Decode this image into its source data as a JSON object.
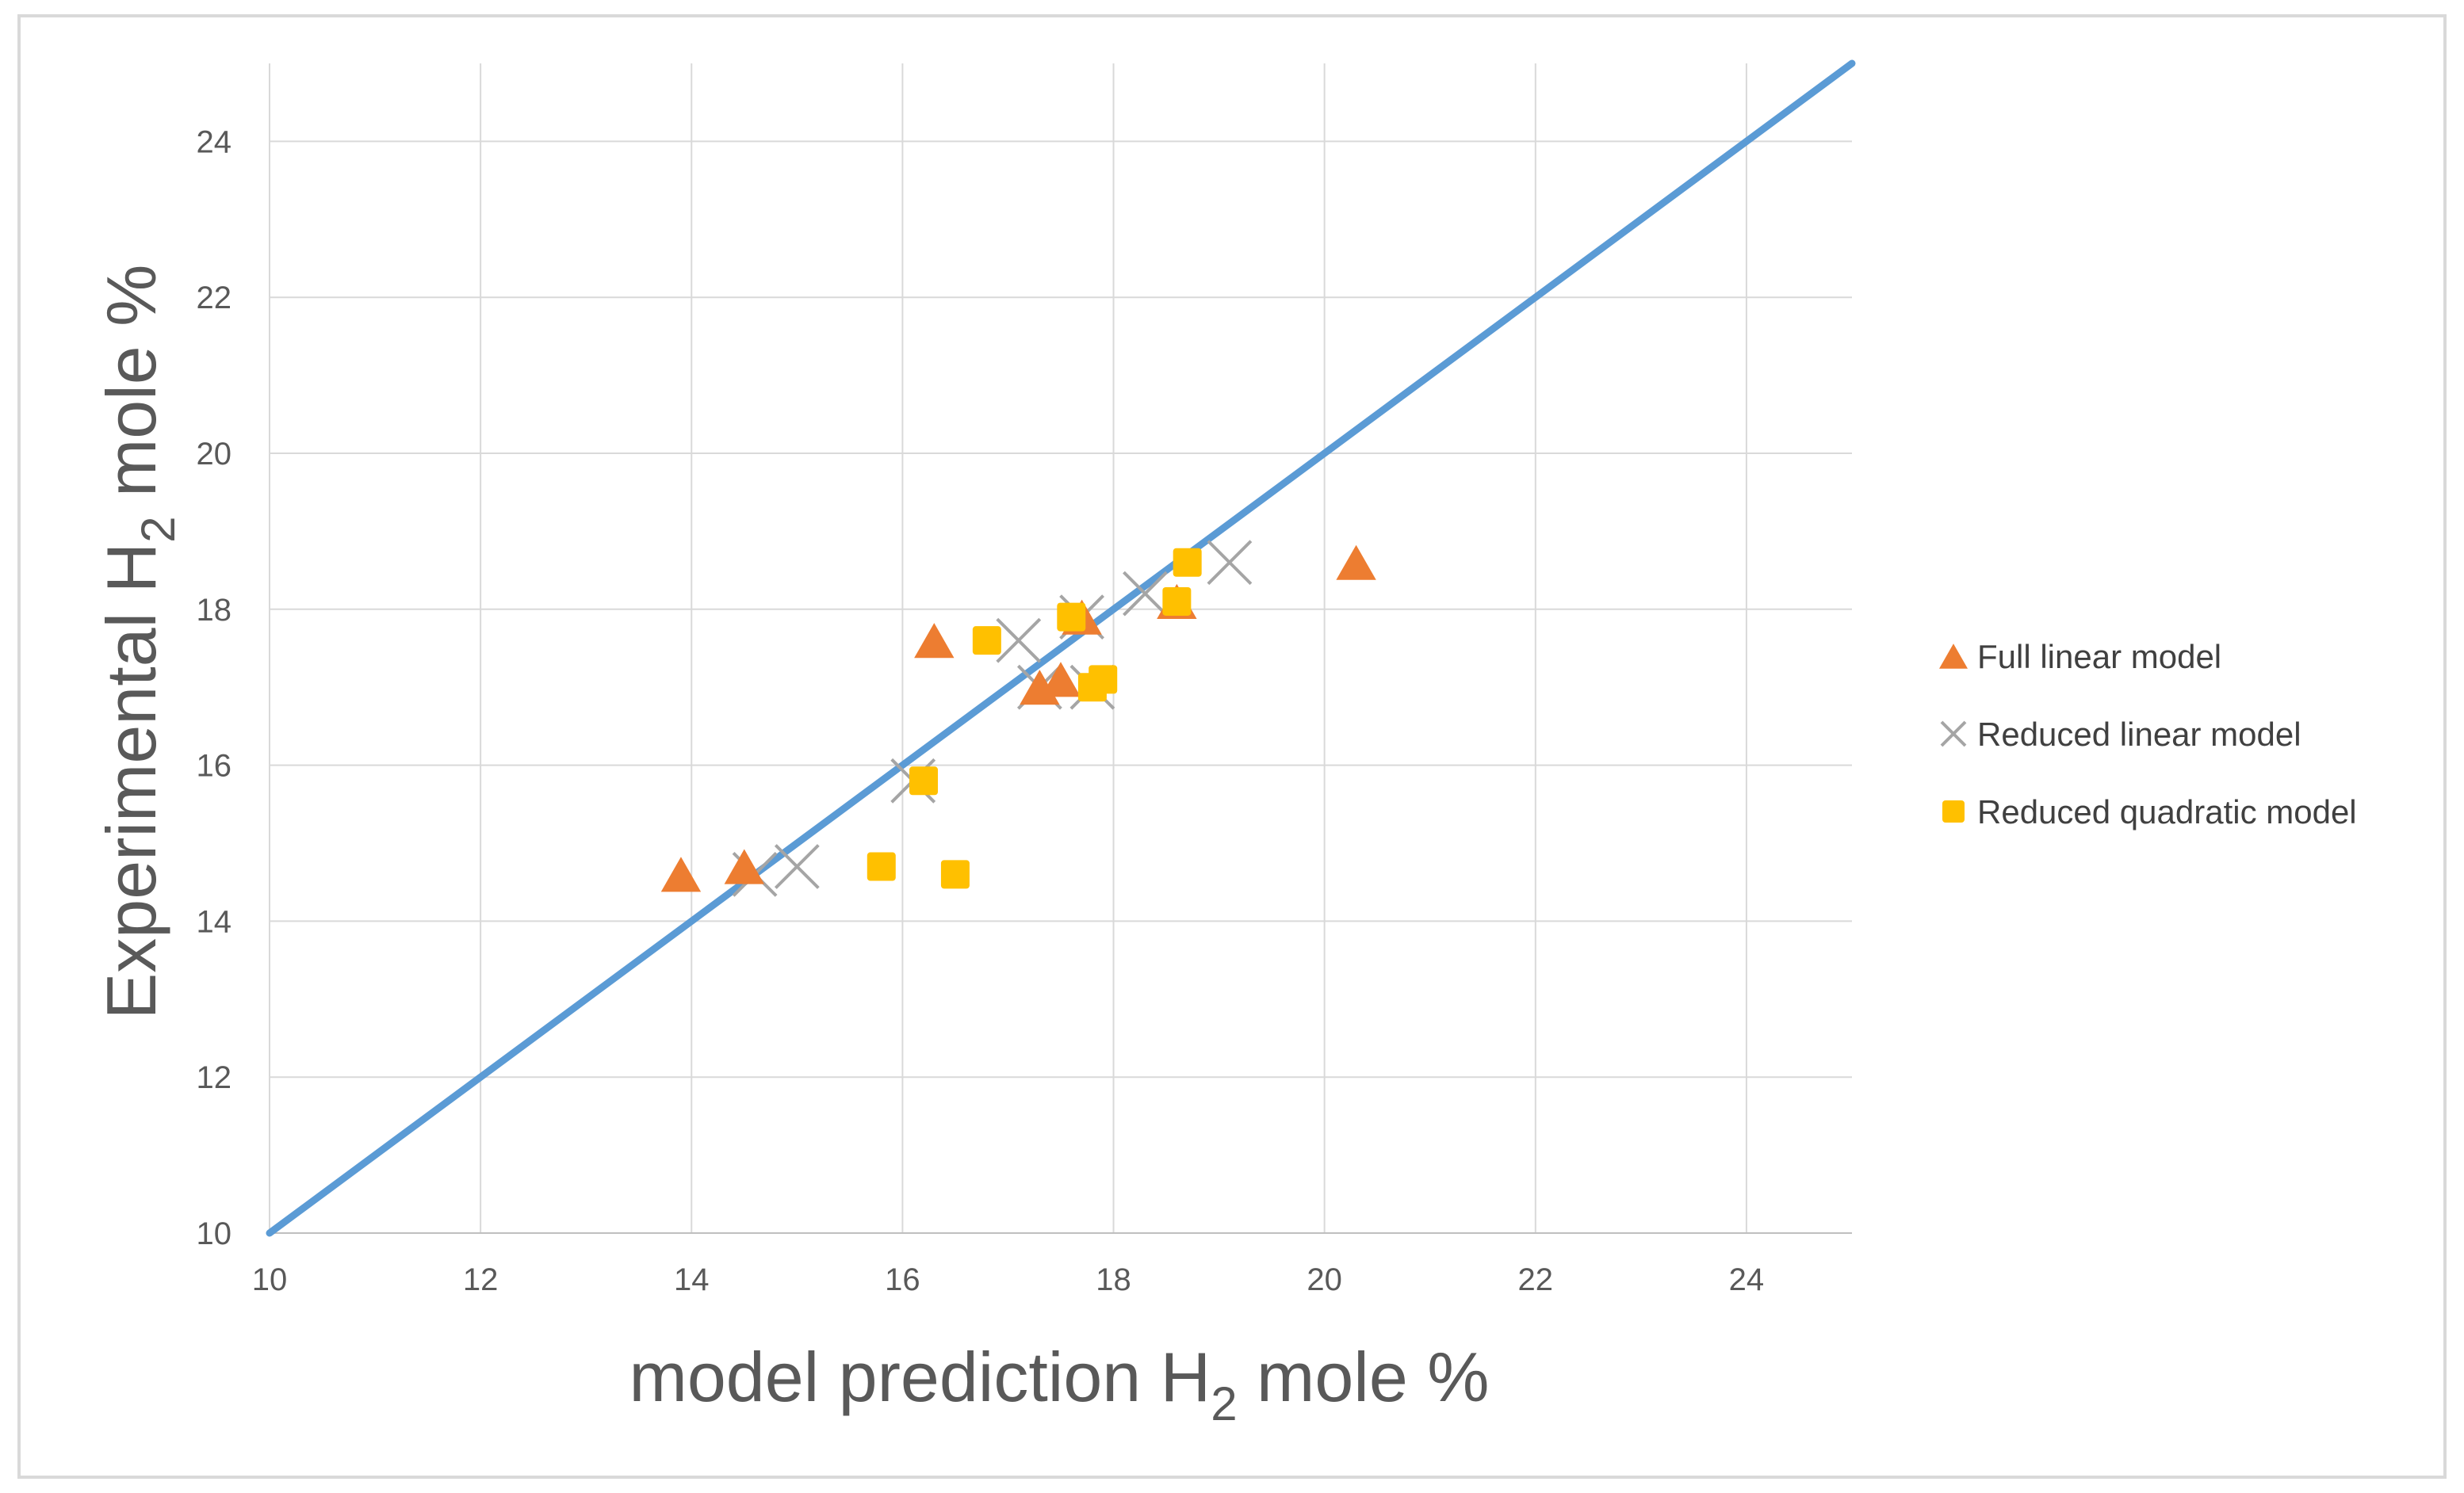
{
  "chart_data": {
    "type": "scatter",
    "title": "",
    "xlabel": {
      "prefix": "model prediction H",
      "sub": "2",
      "suffix": " mole %"
    },
    "ylabel": {
      "prefix": "Experimental H",
      "sub": "2",
      "suffix": " mole %"
    },
    "xlim": [
      10,
      25
    ],
    "ylim": [
      10,
      25
    ],
    "x_ticks": [
      10,
      12,
      14,
      16,
      18,
      20,
      22,
      24
    ],
    "y_ticks": [
      10,
      12,
      14,
      16,
      18,
      20,
      22,
      24
    ],
    "grid": true,
    "legend_position": "right",
    "reference_line": {
      "points": [
        [
          10,
          10
        ],
        [
          25,
          25
        ]
      ],
      "color": "#5b9bd5"
    },
    "series": [
      {
        "name": "Full linear model",
        "marker": "triangle",
        "color": "#ed7d31",
        "points": [
          [
            13.9,
            14.6
          ],
          [
            14.5,
            14.7
          ],
          [
            16.3,
            17.6
          ],
          [
            17.3,
            17.0
          ],
          [
            17.5,
            17.1
          ],
          [
            17.7,
            17.9
          ],
          [
            18.6,
            18.1
          ],
          [
            20.3,
            18.6
          ]
        ]
      },
      {
        "name": "Reduced linear model",
        "marker": "x",
        "color": "#a5a5a5",
        "points": [
          [
            14.6,
            14.6
          ],
          [
            15.0,
            14.7
          ],
          [
            16.1,
            15.8
          ],
          [
            17.1,
            17.6
          ],
          [
            17.3,
            17.0
          ],
          [
            17.7,
            17.9
          ],
          [
            17.8,
            17.0
          ],
          [
            18.3,
            18.2
          ],
          [
            19.1,
            18.6
          ]
        ]
      },
      {
        "name": "Reduced quadratic model",
        "marker": "square",
        "color": "#ffc000",
        "points": [
          [
            15.8,
            14.7
          ],
          [
            16.2,
            15.8
          ],
          [
            16.5,
            14.6
          ],
          [
            16.8,
            17.6
          ],
          [
            17.6,
            17.9
          ],
          [
            17.8,
            17.0
          ],
          [
            17.9,
            17.1
          ],
          [
            18.6,
            18.1
          ],
          [
            18.7,
            18.6
          ]
        ]
      }
    ]
  }
}
